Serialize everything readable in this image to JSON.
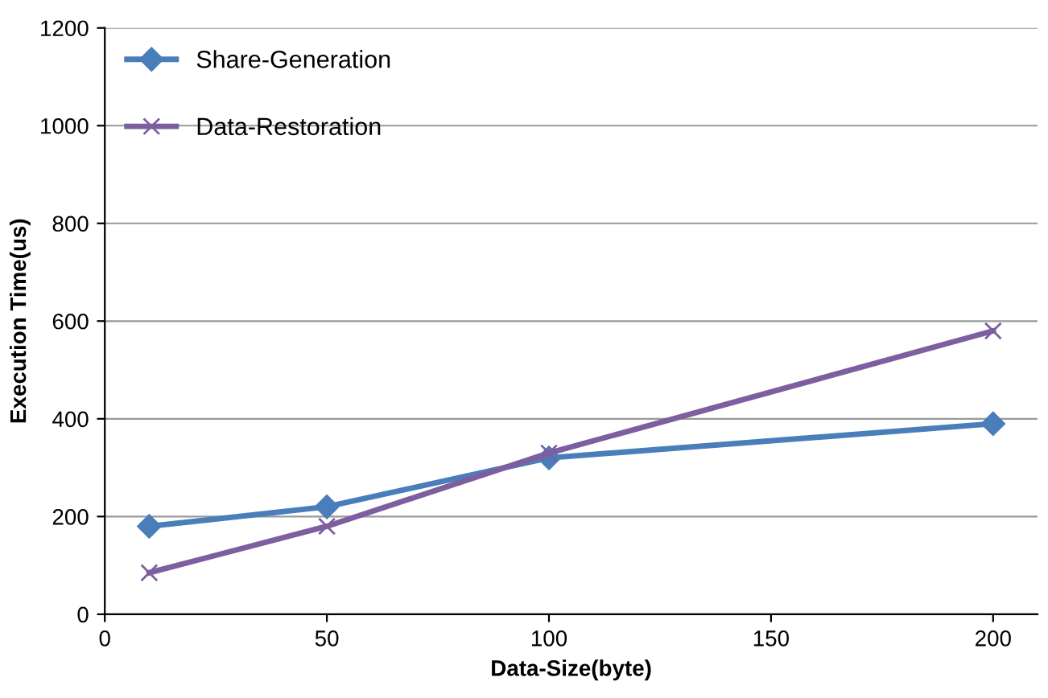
{
  "chart_data": {
    "type": "line",
    "xlabel": "Data-Size(byte)",
    "ylabel": "Execution Time(us)",
    "x": [
      10,
      50,
      100,
      200
    ],
    "series": [
      {
        "name": "Share-Generation",
        "color": "#4a7ebb",
        "marker": "diamond",
        "values": [
          180,
          220,
          320,
          390
        ]
      },
      {
        "name": "Data-Restoration",
        "color": "#7d5fa0",
        "marker": "cross",
        "values": [
          85,
          180,
          330,
          580
        ]
      }
    ],
    "xlim": [
      0,
      210
    ],
    "xticks": [
      0,
      50,
      100,
      150,
      200
    ],
    "ylim": [
      0,
      1200
    ],
    "yticks": [
      0,
      200,
      400,
      600,
      800,
      1000,
      1200
    ],
    "grid": "y",
    "legend": "top left",
    "line_style": "solid"
  }
}
